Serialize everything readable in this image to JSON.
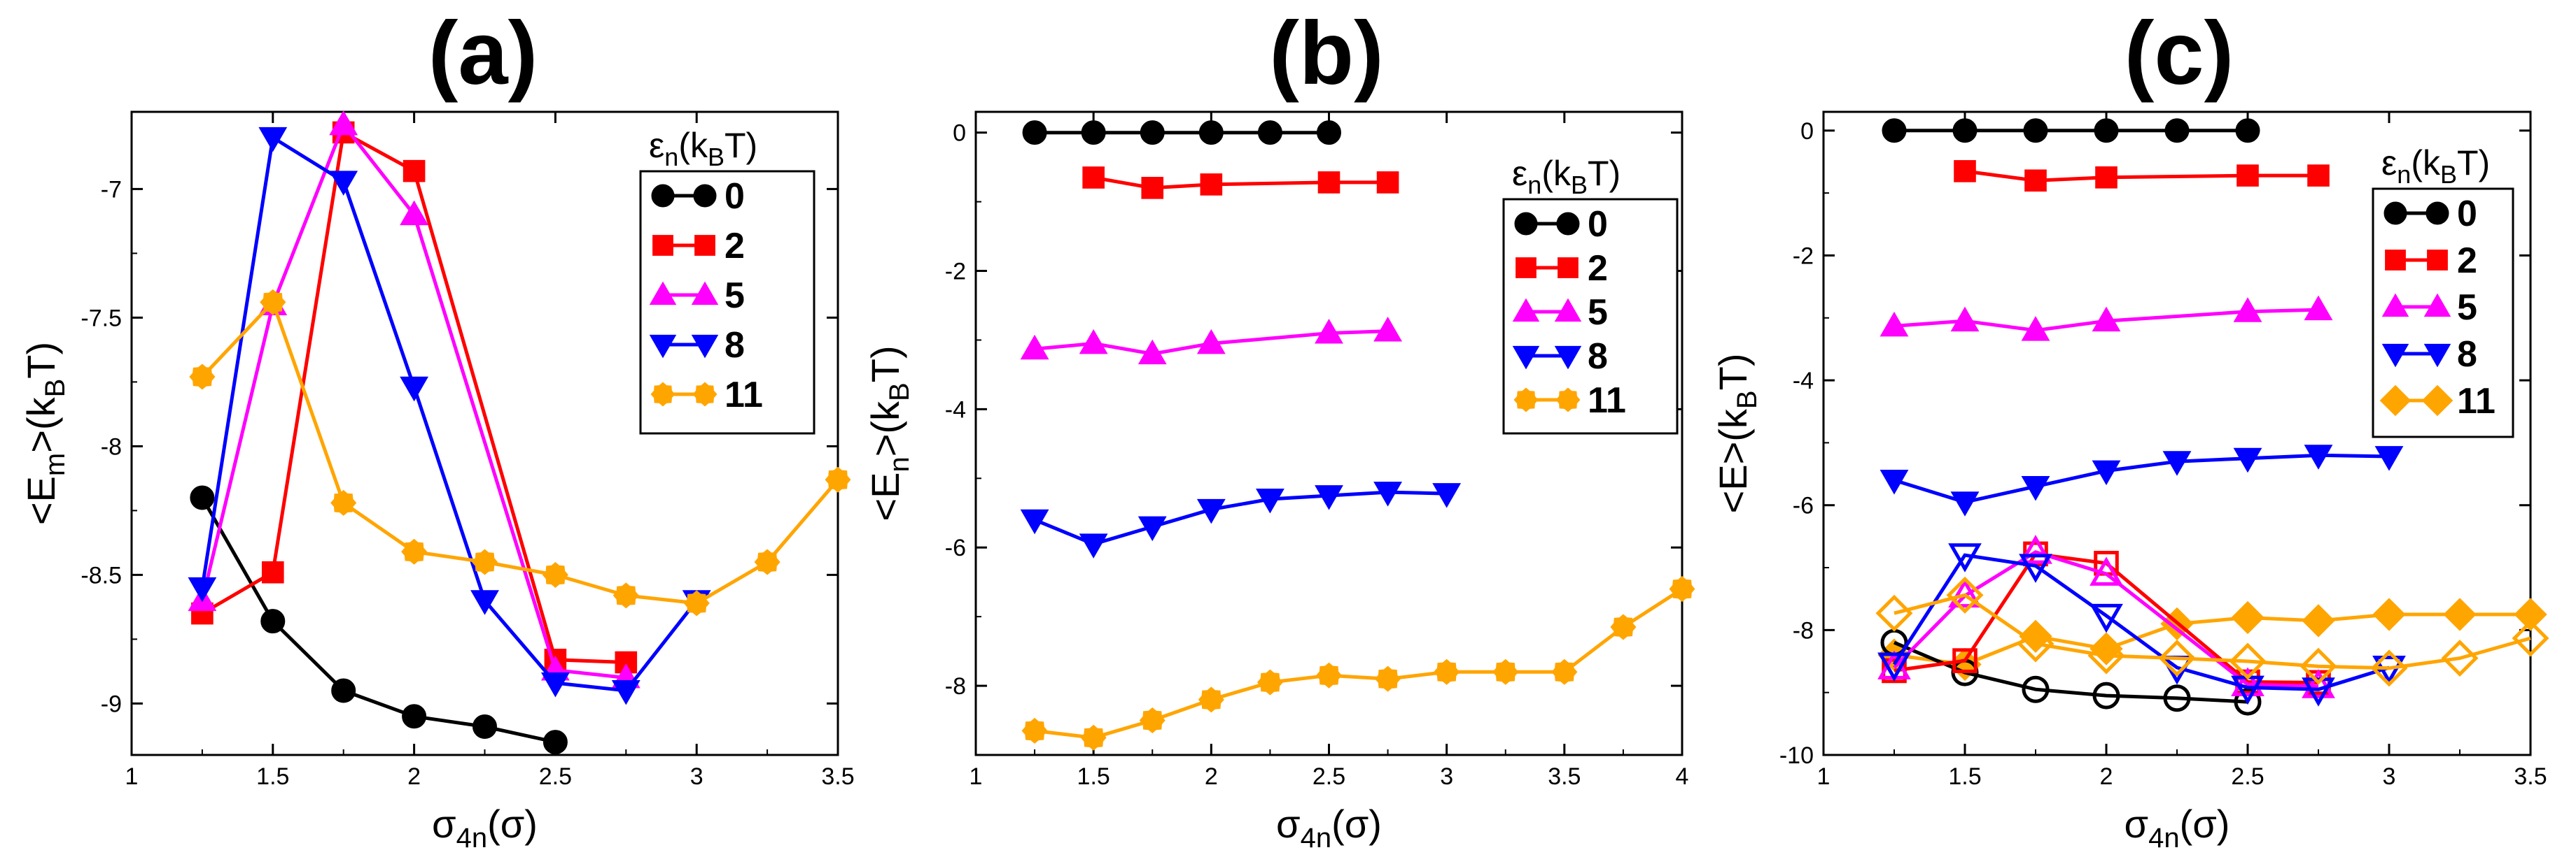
{
  "colors": {
    "0": "#000000",
    "2": "#ff0000",
    "5": "#ff00ff",
    "8": "#0000ff",
    "11": "#ffa500"
  },
  "legend": {
    "title_main": "ε",
    "title_sub": "n",
    "title_open": "(k",
    "title_sub2": "B",
    "title_close": "T)"
  },
  "chart_data": [
    {
      "type": "line",
      "panel": "(a)",
      "title": "(a)",
      "xlabel": {
        "main": "σ",
        "sub": "4n",
        "rest": "(σ)"
      },
      "ylabel": {
        "pre": "<E",
        "sub": "m",
        "mid": ">(k",
        "sub2": "B",
        "post": "T)"
      },
      "xlim": [
        1,
        3.5
      ],
      "ylim": [
        -9.2,
        -6.7
      ],
      "xticks": [
        1,
        1.5,
        2,
        2.5,
        3,
        3.5
      ],
      "xtick_labels": [
        "1",
        "1.5",
        "2",
        "2.5",
        "3",
        "3.5"
      ],
      "yticks": [
        -9,
        -8.5,
        -8,
        -7.5,
        -7
      ],
      "ytick_labels": [
        "-9",
        "-8.5",
        "-8",
        "-7.5",
        "-7"
      ],
      "series": [
        {
          "name": "0",
          "marker": "circle",
          "x": [
            1.25,
            1.5,
            1.75,
            2.0,
            2.25,
            2.5
          ],
          "y": [
            -8.2,
            -8.68,
            -8.95,
            -9.05,
            -9.09,
            -9.15
          ]
        },
        {
          "name": "2",
          "marker": "square",
          "x": [
            1.25,
            1.5,
            1.75,
            2.0,
            2.5,
            2.75
          ],
          "y": [
            -8.65,
            -8.49,
            -6.78,
            -6.93,
            -8.83,
            -8.84
          ]
        },
        {
          "name": "5",
          "marker": "triangle-up",
          "x": [
            1.25,
            1.5,
            1.75,
            2.0,
            2.5,
            2.75
          ],
          "y": [
            -8.6,
            -7.45,
            -6.75,
            -7.1,
            -8.87,
            -8.9
          ]
        },
        {
          "name": "8",
          "marker": "triangle-down",
          "x": [
            1.25,
            1.5,
            1.75,
            2.0,
            2.25,
            2.5,
            2.75,
            3.0
          ],
          "y": [
            -8.55,
            -6.8,
            -6.97,
            -7.77,
            -8.6,
            -8.92,
            -8.95,
            -8.6
          ]
        },
        {
          "name": "11",
          "marker": "gear",
          "x": [
            1.25,
            1.5,
            1.75,
            2.0,
            2.25,
            2.5,
            2.75,
            3.0,
            3.25,
            3.5
          ],
          "y": [
            -7.73,
            -7.44,
            -8.22,
            -8.41,
            -8.45,
            -8.5,
            -8.58,
            -8.61,
            -8.45,
            -8.13
          ]
        }
      ],
      "legend_entries": [
        "0",
        "2",
        "5",
        "8",
        "11"
      ],
      "legend_markers": [
        "circle",
        "square",
        "triangle-up",
        "triangle-down",
        "gear"
      ]
    },
    {
      "type": "line",
      "panel": "(b)",
      "title": "(b)",
      "xlabel": {
        "main": "σ",
        "sub": "4n",
        "rest": "(σ)"
      },
      "ylabel": {
        "pre": "<E",
        "sub": "n",
        "mid": ">(k",
        "sub2": "B",
        "post": "T)"
      },
      "xlim": [
        1,
        4
      ],
      "ylim": [
        -9,
        0.3
      ],
      "xticks": [
        1,
        1.5,
        2,
        2.5,
        3,
        3.5,
        4
      ],
      "xtick_labels": [
        "1",
        "1.5",
        "2",
        "2.5",
        "3",
        "3.5",
        "4"
      ],
      "yticks": [
        0,
        -2,
        -4,
        -6,
        -8
      ],
      "ytick_labels": [
        "0",
        "-2",
        "-4",
        "-6",
        "-8"
      ],
      "series": [
        {
          "name": "0",
          "marker": "circle",
          "x": [
            1.25,
            1.5,
            1.75,
            2.0,
            2.25,
            2.5
          ],
          "y": [
            0,
            0,
            0,
            0,
            0,
            0
          ]
        },
        {
          "name": "2",
          "marker": "square",
          "x": [
            1.5,
            1.75,
            2.0,
            2.5,
            2.75
          ],
          "y": [
            -0.65,
            -0.8,
            -0.75,
            -0.72,
            -0.72
          ]
        },
        {
          "name": "5",
          "marker": "triangle-up",
          "x": [
            1.25,
            1.5,
            1.75,
            2.0,
            2.5,
            2.75
          ],
          "y": [
            -3.13,
            -3.05,
            -3.2,
            -3.05,
            -2.9,
            -2.87
          ]
        },
        {
          "name": "8",
          "marker": "triangle-down",
          "x": [
            1.25,
            1.5,
            1.75,
            2.0,
            2.25,
            2.5,
            2.75,
            3.0
          ],
          "y": [
            -5.6,
            -5.95,
            -5.7,
            -5.45,
            -5.3,
            -5.25,
            -5.2,
            -5.22
          ]
        },
        {
          "name": "11",
          "marker": "gear",
          "x": [
            1.25,
            1.5,
            1.75,
            2.0,
            2.25,
            2.5,
            2.75,
            3.0,
            3.25,
            3.5,
            3.75,
            4.0
          ],
          "y": [
            -8.65,
            -8.75,
            -8.5,
            -8.2,
            -7.95,
            -7.85,
            -7.9,
            -7.8,
            -7.8,
            -7.8,
            -7.15,
            -6.6
          ]
        }
      ],
      "legend_entries": [
        "0",
        "2",
        "5",
        "8",
        "11"
      ],
      "legend_markers": [
        "circle",
        "square",
        "triangle-up",
        "triangle-down",
        "gear"
      ]
    },
    {
      "type": "line",
      "panel": "(c)",
      "title": "(c)",
      "xlabel": {
        "main": "σ",
        "sub": "4n",
        "rest": "(σ)"
      },
      "ylabel": {
        "pre": "<E",
        "sub": "",
        "mid": ">(k",
        "sub2": "B",
        "post": "T)"
      },
      "xlim": [
        1,
        3.5
      ],
      "ylim": [
        -10,
        0.3
      ],
      "xticks": [
        1,
        1.5,
        2,
        2.5,
        3,
        3.5
      ],
      "xtick_labels": [
        "1",
        "1.5",
        "2",
        "2.5",
        "3",
        "3.5"
      ],
      "yticks": [
        0,
        -2,
        -4,
        -6,
        -8,
        -10
      ],
      "ytick_labels": [
        "0",
        "-2",
        "-4",
        "-6",
        "-8",
        "-10"
      ],
      "series": [
        {
          "name": "0",
          "marker": "circle",
          "x": [
            1.25,
            1.5,
            1.75,
            2.0,
            2.25,
            2.5
          ],
          "y": [
            0,
            0,
            0,
            0,
            0,
            0
          ]
        },
        {
          "name": "2",
          "marker": "square",
          "x": [
            1.5,
            1.75,
            2.0,
            2.5,
            2.75
          ],
          "y": [
            -0.65,
            -0.8,
            -0.75,
            -0.72,
            -0.72
          ]
        },
        {
          "name": "5",
          "marker": "triangle-up",
          "x": [
            1.25,
            1.5,
            1.75,
            2.0,
            2.5,
            2.75
          ],
          "y": [
            -3.13,
            -3.05,
            -3.2,
            -3.05,
            -2.9,
            -2.87
          ]
        },
        {
          "name": "8",
          "marker": "triangle-down",
          "x": [
            1.25,
            1.5,
            1.75,
            2.0,
            2.25,
            2.5,
            2.75,
            3.0
          ],
          "y": [
            -5.6,
            -5.95,
            -5.7,
            -5.45,
            -5.3,
            -5.25,
            -5.2,
            -5.22
          ]
        },
        {
          "name": "11",
          "marker": "diamond",
          "x": [
            1.25,
            1.5,
            1.75,
            2.0,
            2.25,
            2.5,
            2.75,
            3.0,
            3.25,
            3.5
          ],
          "y": [
            -8.4,
            -8.55,
            -8.1,
            -8.3,
            -7.9,
            -7.8,
            -7.85,
            -7.75,
            -7.75,
            -7.75
          ]
        },
        {
          "name": "0 (open)",
          "marker": "circle-open",
          "x": [
            1.25,
            1.5,
            1.75,
            2.0,
            2.25,
            2.5
          ],
          "y": [
            -8.2,
            -8.68,
            -8.95,
            -9.05,
            -9.09,
            -9.15
          ]
        },
        {
          "name": "2 (open)",
          "marker": "square-open",
          "x": [
            1.25,
            1.5,
            1.75,
            2.0,
            2.5,
            2.75
          ],
          "y": [
            -8.65,
            -8.49,
            -6.78,
            -6.93,
            -8.83,
            -8.84
          ]
        },
        {
          "name": "5 (open)",
          "marker": "triangle-up-open",
          "x": [
            1.25,
            1.5,
            1.75,
            2.0,
            2.5,
            2.75
          ],
          "y": [
            -8.6,
            -7.45,
            -6.75,
            -7.1,
            -8.87,
            -8.9
          ]
        },
        {
          "name": "8 (open)",
          "marker": "triangle-down-open",
          "x": [
            1.25,
            1.5,
            1.75,
            2.0,
            2.25,
            2.5,
            2.75,
            3.0
          ],
          "y": [
            -8.55,
            -6.8,
            -6.97,
            -7.77,
            -8.6,
            -8.92,
            -8.95,
            -8.6
          ]
        },
        {
          "name": "11 (open)",
          "marker": "diamond-open",
          "x": [
            1.25,
            1.5,
            1.75,
            2.0,
            2.25,
            2.5,
            2.75,
            3.0,
            3.25,
            3.5
          ],
          "y": [
            -7.73,
            -7.44,
            -8.22,
            -8.41,
            -8.45,
            -8.5,
            -8.58,
            -8.61,
            -8.45,
            -8.13
          ]
        }
      ],
      "legend_entries": [
        "0",
        "2",
        "5",
        "8",
        "11"
      ],
      "legend_markers": [
        "circle",
        "square",
        "triangle-up",
        "triangle-down",
        "diamond"
      ]
    }
  ]
}
